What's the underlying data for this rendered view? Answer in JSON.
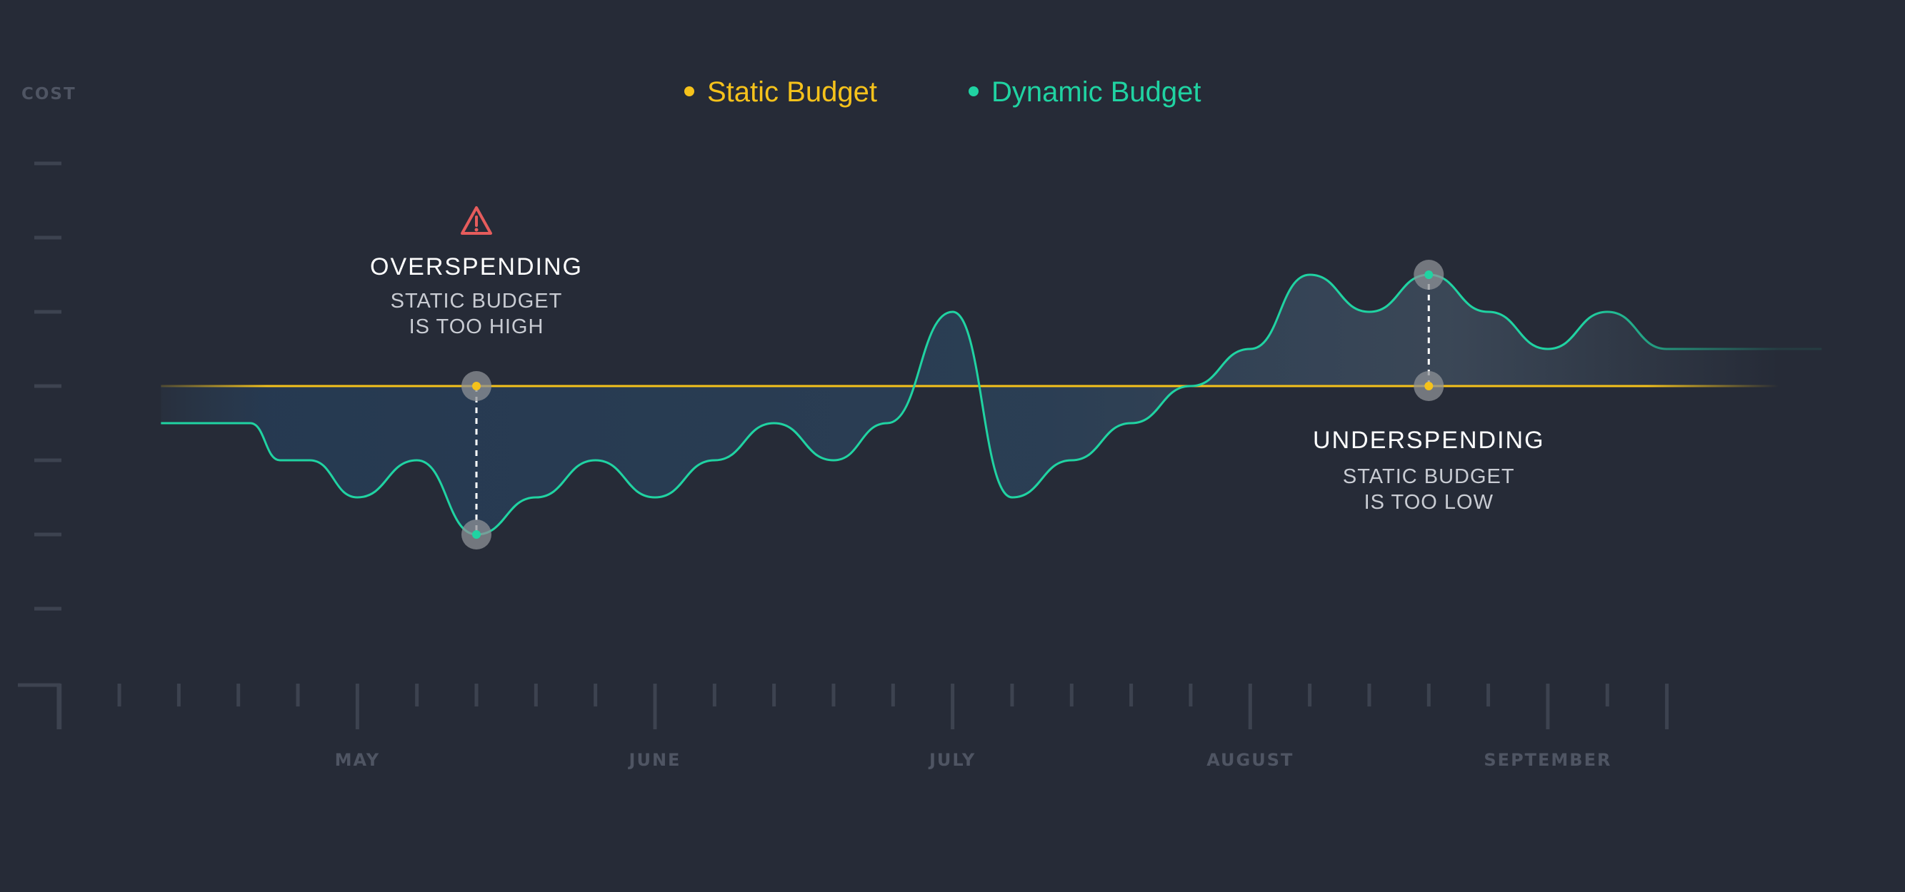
{
  "chart_data": {
    "type": "line",
    "ylabel": "COST",
    "x_labels": [
      "MAY",
      "JUNE",
      "JULY",
      "AUGUST",
      "SEPTEMBER"
    ],
    "ylim": [
      -6,
      6
    ],
    "colors": {
      "background": "#262b37",
      "static": "#f5c21b",
      "dynamic": "#20d3a2",
      "warning": "#e65c5c",
      "axis": "#3d4350"
    },
    "series": [
      {
        "name": "Static Budget",
        "points": [
          [
            -5.3,
            0
          ],
          [
            22.6,
            0
          ]
        ]
      },
      {
        "name": "Dynamic Budget",
        "points": [
          [
            -5.3,
            -0.5
          ],
          [
            -3.8,
            -0.5
          ],
          [
            -3.3,
            -1.0
          ],
          [
            -2.8,
            -1.0
          ],
          [
            -2.0,
            -1.5
          ],
          [
            -1.0,
            -1.0
          ],
          [
            0.0,
            -2.0
          ],
          [
            1.0,
            -1.5
          ],
          [
            2.0,
            -1.0
          ],
          [
            3.0,
            -1.5
          ],
          [
            4.0,
            -1.0
          ],
          [
            5.0,
            -0.5
          ],
          [
            6.0,
            -1.0
          ],
          [
            6.9,
            -0.5
          ],
          [
            8.0,
            1.0
          ],
          [
            9.0,
            -1.5
          ],
          [
            10.0,
            -1.0
          ],
          [
            11.0,
            -0.5
          ],
          [
            12.0,
            0.0
          ],
          [
            13.0,
            0.5
          ],
          [
            14.0,
            1.5
          ],
          [
            15.0,
            1.0
          ],
          [
            16.0,
            1.5
          ],
          [
            17.0,
            1.0
          ],
          [
            18.0,
            0.5
          ],
          [
            19.0,
            1.0
          ],
          [
            20.0,
            0.5
          ],
          [
            22.6,
            0.5
          ]
        ]
      }
    ],
    "annotations": [
      {
        "title": "OVERSPENDING",
        "lines": [
          "STATIC BUDGET",
          "IS TOO HIGH"
        ],
        "icon": "warning-icon",
        "x": 0.0,
        "static_y": 0,
        "dynamic_y": -2.0
      },
      {
        "title": "UNDERSPENDING",
        "lines": [
          "STATIC BUDGET",
          "IS TOO LOW"
        ],
        "x": 16.0,
        "static_y": 0,
        "dynamic_y": 1.5
      }
    ]
  }
}
